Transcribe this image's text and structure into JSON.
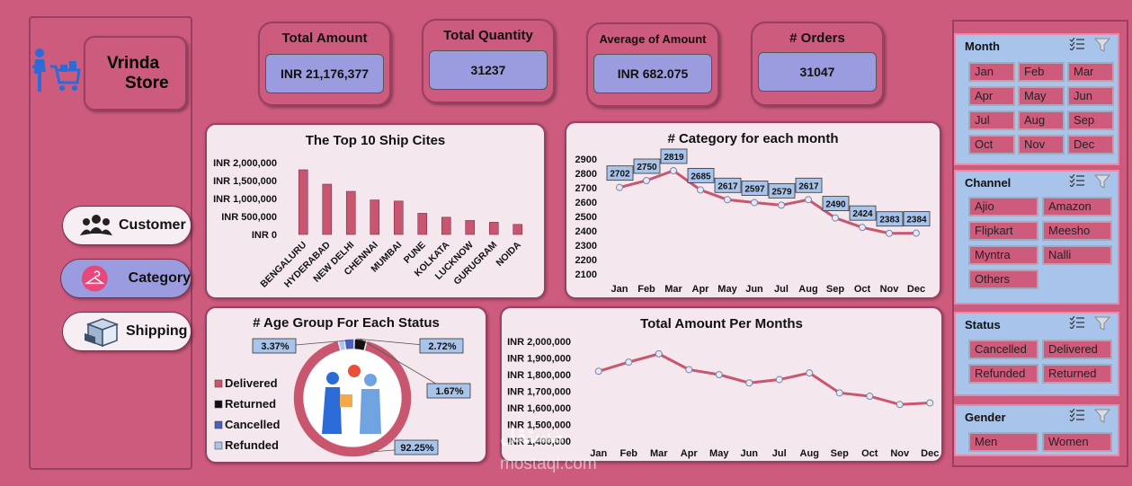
{
  "store": {
    "line1": "Vrinda",
    "line2": "Store"
  },
  "nav": [
    {
      "label": "Customer",
      "icon": "group-icon"
    },
    {
      "label": "Category",
      "icon": "hanger-icon"
    },
    {
      "label": "Shipping",
      "icon": "package-icon"
    }
  ],
  "kpis": [
    {
      "title": "Total Amount",
      "value": "INR 21,176,377"
    },
    {
      "title": "Total Quantity",
      "value": "31237"
    },
    {
      "title": "Average of Amount",
      "value": "INR 682.075"
    },
    {
      "title": "# Orders",
      "value": "31047"
    }
  ],
  "chart_data": [
    {
      "type": "bar",
      "title": "The Top 10 Ship Cites",
      "categories": [
        "BENGALURU",
        "HYDERABAD",
        "NEW DELHI",
        "CHENNAI",
        "MUMBAI",
        "PUNE",
        "KOLKATA",
        "LUCKNOW",
        "GURUGRAM",
        "NOIDA"
      ],
      "values": [
        1800000,
        1400000,
        1200000,
        960000,
        930000,
        590000,
        480000,
        390000,
        340000,
        280000
      ],
      "ytick_labels": [
        "INR 2,000,000",
        "INR 1,500,000",
        "INR 1,000,000",
        "INR 500,000",
        "INR 0"
      ],
      "ylim": [
        0,
        2000000
      ],
      "color": "#c9566f"
    },
    {
      "type": "line",
      "title": "# Category for each  month",
      "categories": [
        "Jan",
        "Feb",
        "Mar",
        "Apr",
        "May",
        "Jun",
        "Jul",
        "Aug",
        "Sep",
        "Oct",
        "Nov",
        "Dec"
      ],
      "values": [
        2702,
        2750,
        2819,
        2685,
        2617,
        2597,
        2579,
        2617,
        2490,
        2424,
        2383,
        2384
      ],
      "yticks": [
        2100,
        2200,
        2300,
        2400,
        2500,
        2600,
        2700,
        2800,
        2900
      ],
      "ylim": [
        2100,
        2900
      ],
      "data_labels": true,
      "color": "#c9566f"
    },
    {
      "type": "pie",
      "title": "# Age Group For Each Status",
      "labels": [
        "Delivered",
        "Returned",
        "Cancelled",
        "Refunded"
      ],
      "values": [
        92.25,
        3.37,
        2.72,
        1.67
      ],
      "value_labels": [
        "92.25%",
        "3.37%",
        "2.72%",
        "1.67%"
      ],
      "colors": [
        "#c9566f",
        "#111111",
        "#4a5fb8",
        "#a9c4ea"
      ],
      "legend": "left"
    },
    {
      "type": "line",
      "title": "Total  Amount Per Months",
      "categories": [
        "Jan",
        "Feb",
        "Mar",
        "Apr",
        "May",
        "Jun",
        "Jul",
        "Aug",
        "Sep",
        "Oct",
        "Nov",
        "Dec"
      ],
      "values": [
        1820000,
        1875000,
        1925000,
        1830000,
        1800000,
        1750000,
        1770000,
        1810000,
        1690000,
        1670000,
        1620000,
        1630000
      ],
      "ytick_labels": [
        "INR 2,000,000",
        "INR 1,900,000",
        "INR 1,800,000",
        "INR 1,700,000",
        "INR 1,600,000",
        "INR 1,500,000",
        "INR 1,400,000"
      ],
      "ylim": [
        1400000,
        2000000
      ],
      "color": "#c9566f"
    }
  ],
  "slicers": [
    {
      "title": "Month",
      "items": [
        "Jan",
        "Feb",
        "Mar",
        "Apr",
        "May",
        "Jun",
        "Jul",
        "Aug",
        "Sep",
        "Oct",
        "Nov",
        "Dec"
      ]
    },
    {
      "title": "Channel",
      "items": [
        "Ajio",
        "Amazon",
        "Flipkart",
        "Meesho",
        "Myntra",
        "Nalli",
        "Others"
      ]
    },
    {
      "title": "Status",
      "items": [
        "Cancelled",
        "Delivered",
        "Refunded",
        "Returned"
      ]
    },
    {
      "title": "Gender",
      "items": [
        "Men",
        "Women"
      ]
    }
  ],
  "watermark": {
    "line1": "مستقل",
    "line2": "mostaql.com"
  }
}
